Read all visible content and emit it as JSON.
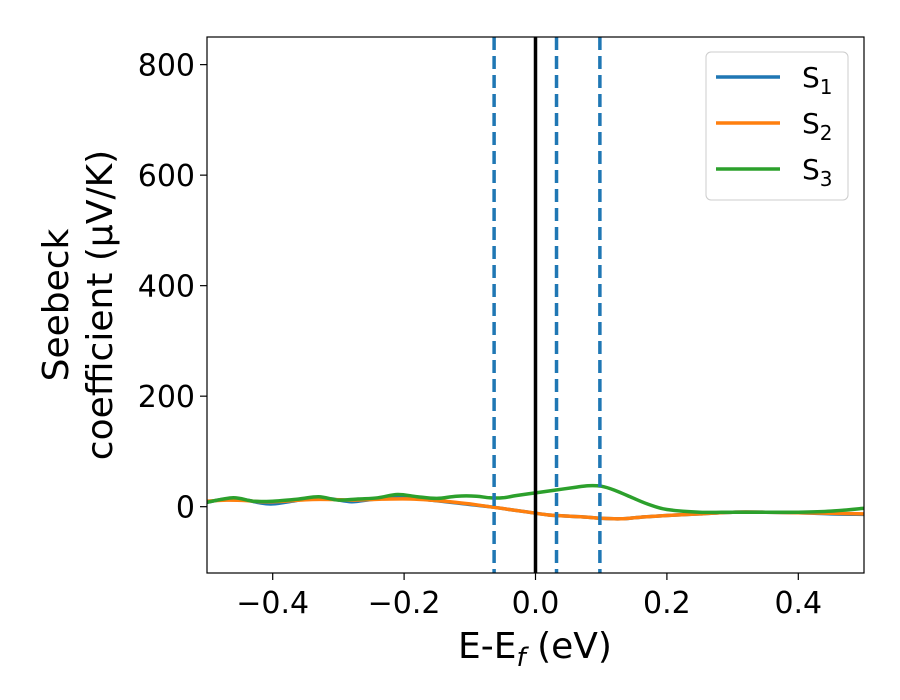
{
  "chart_data": {
    "type": "line",
    "xlabel": "E-E",
    "xlabel_sub": "f",
    "xlabel_unit": " (eV)",
    "ylabel_line1": "Seebeck",
    "ylabel_line2": "coefficient  (μV/K)",
    "xlim": [
      -0.5,
      0.5
    ],
    "ylim": [
      -120,
      850
    ],
    "xticks": [
      -0.4,
      -0.2,
      0.0,
      0.2,
      0.4
    ],
    "xtick_labels": [
      "−0.4",
      "−0.2",
      "0.0",
      "0.2",
      "0.4"
    ],
    "yticks": [
      0,
      200,
      400,
      600,
      800
    ],
    "ytick_labels": [
      "0",
      "200",
      "400",
      "600",
      "800"
    ],
    "grid": false,
    "legend_position": "top-right",
    "vlines": [
      {
        "x": -0.063,
        "style": "dashed",
        "color": "#1f77b4"
      },
      {
        "x": 0.0,
        "style": "solid",
        "color": "#000000"
      },
      {
        "x": 0.032,
        "style": "dashed",
        "color": "#1f77b4"
      },
      {
        "x": 0.098,
        "style": "dashed",
        "color": "#1f77b4"
      }
    ],
    "series": [
      {
        "name": "S",
        "sub": "1",
        "color": "#1f77b4",
        "x": [
          -0.5,
          -0.47,
          -0.44,
          -0.42,
          -0.4,
          -0.37,
          -0.34,
          -0.31,
          -0.28,
          -0.25,
          -0.22,
          -0.19,
          -0.16,
          -0.13,
          -0.1,
          -0.07,
          -0.04,
          -0.01,
          0.02,
          0.05,
          0.08,
          0.1,
          0.13,
          0.16,
          0.2,
          0.25,
          0.3,
          0.35,
          0.4,
          0.45,
          0.5
        ],
        "y": [
          8,
          14,
          12,
          7,
          5,
          10,
          16,
          14,
          9,
          13,
          17,
          16,
          12,
          8,
          4,
          0,
          -5,
          -10,
          -15,
          -17,
          -19,
          -21,
          -22,
          -19,
          -16,
          -13,
          -10,
          -10,
          -11,
          -13,
          -14
        ]
      },
      {
        "name": "S",
        "sub": "2",
        "color": "#ff7f0e",
        "x": [
          -0.5,
          -0.47,
          -0.44,
          -0.42,
          -0.4,
          -0.37,
          -0.34,
          -0.31,
          -0.28,
          -0.25,
          -0.22,
          -0.19,
          -0.16,
          -0.13,
          -0.1,
          -0.07,
          -0.04,
          -0.01,
          0.02,
          0.05,
          0.08,
          0.1,
          0.13,
          0.16,
          0.2,
          0.25,
          0.3,
          0.35,
          0.4,
          0.45,
          0.5
        ],
        "y": [
          10,
          12,
          11,
          9,
          9,
          11,
          13,
          13,
          12,
          13,
          14,
          14,
          12,
          9,
          5,
          0,
          -5,
          -10,
          -15,
          -17,
          -19,
          -21,
          -22,
          -19,
          -16,
          -13,
          -10,
          -10,
          -11,
          -12,
          -13
        ]
      },
      {
        "name": "S",
        "sub": "3",
        "color": "#2ca02c",
        "x": [
          -0.5,
          -0.46,
          -0.43,
          -0.4,
          -0.36,
          -0.33,
          -0.3,
          -0.27,
          -0.24,
          -0.21,
          -0.18,
          -0.15,
          -0.12,
          -0.09,
          -0.07,
          -0.05,
          -0.03,
          0.0,
          0.03,
          0.06,
          0.08,
          0.1,
          0.12,
          0.14,
          0.17,
          0.2,
          0.25,
          0.3,
          0.35,
          0.4,
          0.45,
          0.5
        ],
        "y": [
          8,
          16,
          10,
          10,
          14,
          18,
          12,
          14,
          16,
          22,
          18,
          15,
          19,
          19,
          16,
          16,
          20,
          25,
          30,
          35,
          38,
          37,
          30,
          20,
          5,
          -5,
          -10,
          -10,
          -10,
          -10,
          -8,
          -3
        ]
      }
    ]
  }
}
